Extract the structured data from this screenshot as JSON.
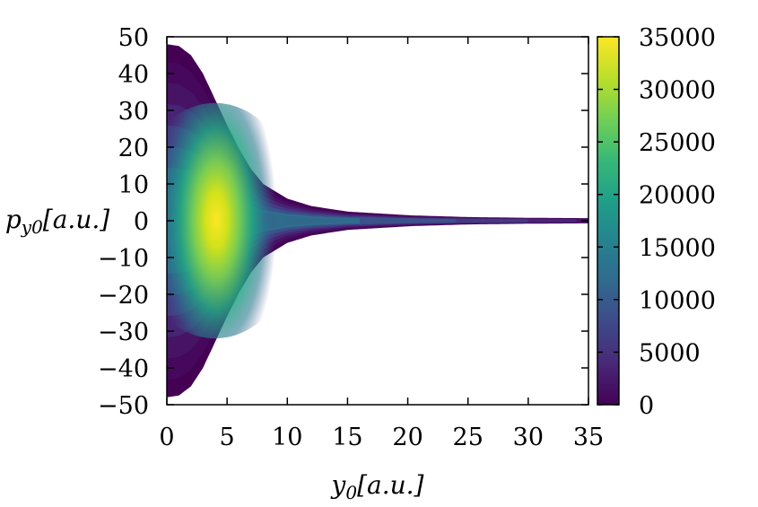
{
  "chart_data": {
    "type": "heatmap",
    "title": "",
    "xlabel": "y0[a.u.]",
    "ylabel": "py0[a.u.]",
    "xlim": [
      0,
      35
    ],
    "ylim": [
      -50,
      50
    ],
    "x_ticks": [
      "0",
      "5",
      "10",
      "15",
      "20",
      "25",
      "30",
      "35"
    ],
    "y_ticks": [
      "50",
      "40",
      "30",
      "20",
      "10",
      "0",
      "−10",
      "−20",
      "−30",
      "−40",
      "−50"
    ],
    "colorbar": {
      "range": [
        0,
        35000
      ],
      "ticks": [
        "35000",
        "30000",
        "25000",
        "20000",
        "15000",
        "10000",
        "5000",
        "0"
      ],
      "colormap": "viridis",
      "colors": [
        "#440154",
        "#482878",
        "#3e4989",
        "#31688e",
        "#26828e",
        "#1f9e89",
        "#35b779",
        "#6ece58",
        "#b5de2b",
        "#fde725"
      ]
    },
    "distribution": {
      "envelope_halfwidth": [
        [
          0,
          48
        ],
        [
          1,
          47.5
        ],
        [
          2,
          45
        ],
        [
          3,
          40
        ],
        [
          4,
          33
        ],
        [
          5,
          26
        ],
        [
          6,
          19.5
        ],
        [
          7,
          14
        ],
        [
          8,
          10
        ],
        [
          10,
          6
        ],
        [
          12,
          4
        ],
        [
          15,
          2.5
        ],
        [
          20,
          1.5
        ],
        [
          25,
          1
        ],
        [
          30,
          0.8
        ],
        [
          35,
          0.7
        ]
      ],
      "peak": {
        "y0": 4,
        "py0": 0,
        "value": 35000
      }
    }
  }
}
